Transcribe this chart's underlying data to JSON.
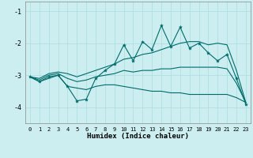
{
  "xlabel": "Humidex (Indice chaleur)",
  "ylabel": "",
  "background_color": "#cceef0",
  "grid_color": "#aadddd",
  "line_color": "#006b6b",
  "xlim": [
    -0.5,
    23.5
  ],
  "ylim": [
    -4.5,
    -0.7
  ],
  "yticks": [
    -4,
    -3,
    -2,
    -1
  ],
  "xticks": [
    0,
    1,
    2,
    3,
    4,
    5,
    6,
    7,
    8,
    9,
    10,
    11,
    12,
    13,
    14,
    15,
    16,
    17,
    18,
    19,
    20,
    21,
    22,
    23
  ],
  "series": {
    "main": {
      "x": [
        0,
        1,
        2,
        3,
        4,
        5,
        6,
        7,
        8,
        9,
        10,
        11,
        12,
        13,
        14,
        15,
        16,
        17,
        18,
        19,
        20,
        21,
        22,
        23
      ],
      "y": [
        -3.05,
        -3.2,
        -3.05,
        -3.0,
        -3.35,
        -3.8,
        -3.75,
        -3.1,
        -2.85,
        -2.65,
        -2.05,
        -2.55,
        -1.95,
        -2.2,
        -1.45,
        -2.1,
        -1.5,
        -2.15,
        -2.0,
        -2.3,
        -2.55,
        -2.35,
        -3.1,
        -3.9
      ]
    },
    "upper": {
      "x": [
        0,
        1,
        2,
        3,
        4,
        5,
        6,
        7,
        8,
        9,
        10,
        11,
        12,
        13,
        14,
        15,
        16,
        17,
        18,
        19,
        20,
        21,
        22,
        23
      ],
      "y": [
        -3.05,
        -3.1,
        -2.95,
        -2.9,
        -2.95,
        -3.05,
        -2.95,
        -2.85,
        -2.75,
        -2.65,
        -2.5,
        -2.45,
        -2.35,
        -2.3,
        -2.2,
        -2.1,
        -2.0,
        -1.95,
        -1.95,
        -2.05,
        -2.0,
        -2.05,
        -2.85,
        -3.85
      ]
    },
    "lower": {
      "x": [
        0,
        1,
        2,
        3,
        4,
        5,
        6,
        7,
        8,
        9,
        10,
        11,
        12,
        13,
        14,
        15,
        16,
        17,
        18,
        19,
        20,
        21,
        22,
        23
      ],
      "y": [
        -3.05,
        -3.2,
        -3.1,
        -3.0,
        -3.35,
        -3.4,
        -3.45,
        -3.35,
        -3.3,
        -3.3,
        -3.35,
        -3.4,
        -3.45,
        -3.5,
        -3.5,
        -3.55,
        -3.55,
        -3.6,
        -3.6,
        -3.6,
        -3.6,
        -3.6,
        -3.7,
        -3.85
      ]
    },
    "mid": {
      "x": [
        0,
        1,
        2,
        3,
        4,
        5,
        6,
        7,
        8,
        9,
        10,
        11,
        12,
        13,
        14,
        15,
        16,
        17,
        18,
        19,
        20,
        21,
        22,
        23
      ],
      "y": [
        -3.05,
        -3.15,
        -3.0,
        -2.95,
        -3.1,
        -3.2,
        -3.15,
        -3.05,
        -3.0,
        -2.95,
        -2.85,
        -2.9,
        -2.85,
        -2.85,
        -2.8,
        -2.8,
        -2.75,
        -2.75,
        -2.75,
        -2.75,
        -2.75,
        -2.8,
        -3.25,
        -3.85
      ]
    }
  }
}
